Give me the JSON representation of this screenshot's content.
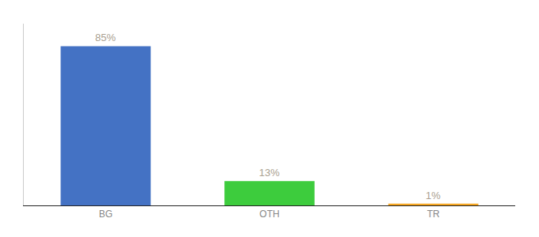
{
  "chart_data": {
    "type": "bar",
    "categories": [
      "BG",
      "OTH",
      "TR"
    ],
    "values": [
      85,
      13,
      1
    ],
    "value_labels": [
      "85%",
      "13%",
      "1%"
    ],
    "colors": [
      "#4472c4",
      "#3dcc3d",
      "#f5a623"
    ],
    "ylim": [
      0,
      97
    ],
    "data_labels": true,
    "tick_labels": "x",
    "grid": false
  }
}
